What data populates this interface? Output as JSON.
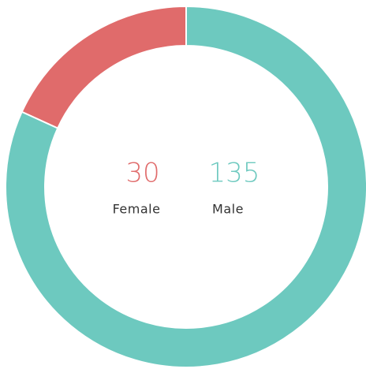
{
  "chart_data": {
    "type": "donut",
    "categories": [
      "Female",
      "Male"
    ],
    "values": [
      30,
      135
    ],
    "colors": [
      "#e06b6b",
      "#6dc9bf"
    ]
  }
}
